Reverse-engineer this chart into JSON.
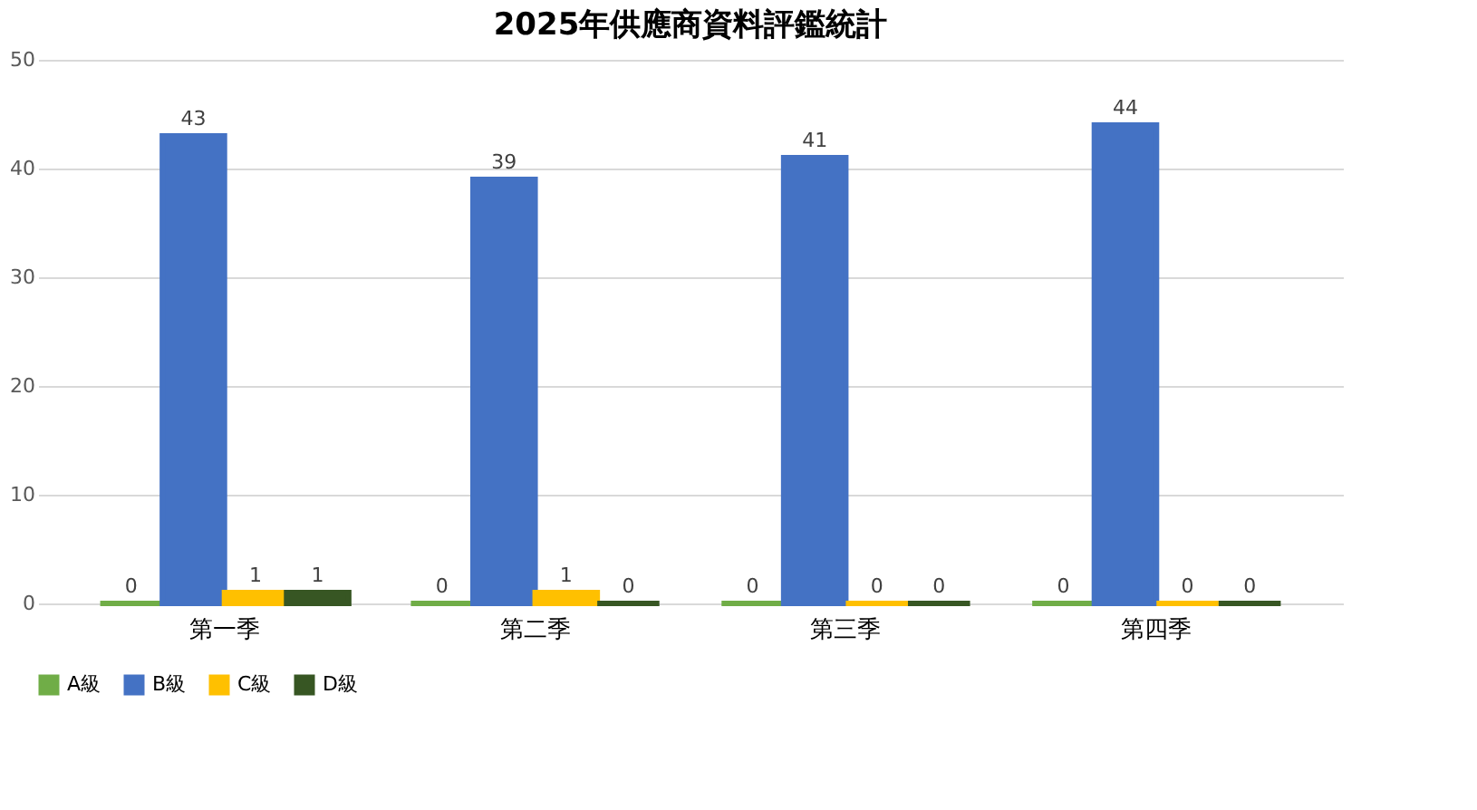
{
  "chart_data": {
    "type": "bar",
    "title": "2025年供應商資料評鑑統計",
    "categories": [
      "第一季",
      "第二季",
      "第三季",
      "第四季"
    ],
    "series": [
      {
        "name": "A級",
        "color": "#70ad47",
        "values": [
          0,
          0,
          0,
          0
        ]
      },
      {
        "name": "B級",
        "color": "#4472c4",
        "values": [
          43,
          39,
          41,
          44
        ]
      },
      {
        "name": "C級",
        "color": "#ffc000",
        "values": [
          1,
          1,
          0,
          0
        ]
      },
      {
        "name": "D級",
        "color": "#375623",
        "values": [
          1,
          0,
          0,
          0
        ]
      }
    ],
    "ylim": [
      0,
      50
    ],
    "yticks": [
      0,
      10,
      20,
      30,
      40,
      50
    ],
    "grid": "y",
    "legend": "bottom",
    "data_labels": true
  }
}
